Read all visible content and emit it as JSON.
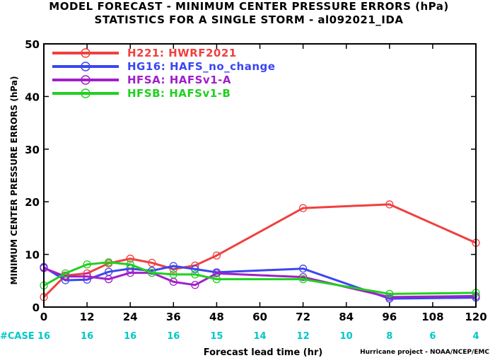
{
  "chart_data": {
    "type": "line",
    "title": "MODEL FORECAST - MINIMUM CENTER PRESSURE ERRORS (hPa)",
    "subtitle": "STATISTICS FOR A SINGLE STORM - al092021_IDA",
    "xlabel": "Forecast lead time (hr)",
    "ylabel": "MINIMUM CENTER PRESSURE ERRORS (hPa)",
    "xlim": [
      0,
      120
    ],
    "ylim": [
      0,
      50
    ],
    "xticks": [
      0,
      12,
      24,
      36,
      48,
      60,
      72,
      84,
      96,
      108,
      120
    ],
    "yticks": [
      0,
      10,
      20,
      30,
      40,
      50
    ],
    "grid": false,
    "legend_position": "top-left",
    "case_label": "#CASE",
    "case_color": "#00c8c8",
    "cases": [
      {
        "x": 0,
        "n": "16"
      },
      {
        "x": 12,
        "n": "16"
      },
      {
        "x": 24,
        "n": "16"
      },
      {
        "x": 36,
        "n": "16"
      },
      {
        "x": 48,
        "n": "15"
      },
      {
        "x": 60,
        "n": "14"
      },
      {
        "x": 72,
        "n": "12"
      },
      {
        "x": 84,
        "n": "10"
      },
      {
        "x": 96,
        "n": "8"
      },
      {
        "x": 108,
        "n": "6"
      },
      {
        "x": 120,
        "n": "4"
      }
    ],
    "series": [
      {
        "name": "H221: HWRF2021",
        "color": "#f04040",
        "x": [
          0,
          6,
          12,
          18,
          24,
          30,
          36,
          42,
          48,
          72,
          96,
          120
        ],
        "y": [
          1.9,
          6.0,
          6.4,
          8.3,
          9.2,
          8.4,
          7.2,
          7.9,
          9.8,
          18.8,
          19.5,
          12.2
        ]
      },
      {
        "name": "HG16: HAFS_no_change",
        "color": "#3a46f0",
        "x": [
          0,
          6,
          12,
          18,
          24,
          30,
          36,
          42,
          48,
          72,
          96,
          120
        ],
        "y": [
          7.6,
          5.1,
          5.2,
          6.7,
          7.3,
          6.9,
          7.8,
          7.2,
          6.6,
          7.3,
          1.6,
          1.8
        ]
      },
      {
        "name": "HFSA: HAFSv1-A",
        "color": "#a020c8",
        "x": [
          0,
          6,
          12,
          18,
          24,
          30,
          36,
          42,
          48,
          72,
          96,
          120
        ],
        "y": [
          7.4,
          5.8,
          5.8,
          5.3,
          6.5,
          6.5,
          4.8,
          4.2,
          6.4,
          5.7,
          1.9,
          2.1
        ]
      },
      {
        "name": "HFSB: HAFSv1-B",
        "color": "#20d020",
        "x": [
          0,
          6,
          12,
          18,
          24,
          30,
          36,
          42,
          48,
          72,
          96,
          120
        ],
        "y": [
          4.1,
          6.4,
          8.1,
          8.5,
          8.1,
          6.5,
          6.2,
          6.2,
          5.3,
          5.3,
          2.5,
          2.7
        ]
      }
    ]
  },
  "footer": {
    "credit": "Hurricane project - NOAA/NCEP/EMC"
  }
}
